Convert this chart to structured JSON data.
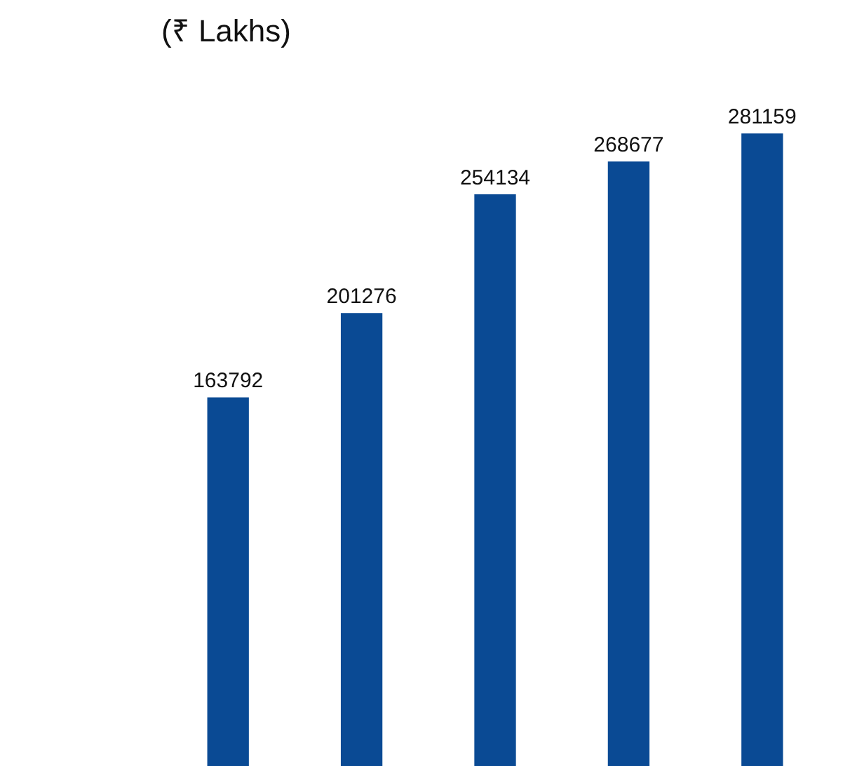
{
  "chart_data": {
    "type": "bar",
    "title": "(₹ Lakhs)",
    "categories": [
      null,
      null,
      null,
      null,
      null
    ],
    "values": [
      163792,
      201276,
      254134,
      268677,
      281159
    ],
    "color": "#0a4a94",
    "data_labels": true,
    "legend": false,
    "tick_labels": false
  }
}
